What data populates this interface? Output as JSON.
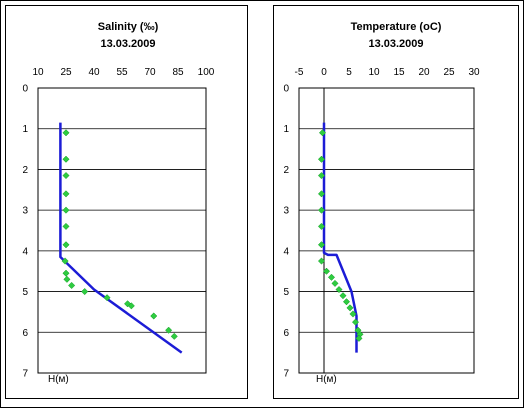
{
  "chart_data": [
    {
      "type": "scatter",
      "title": "Salinity (‰)",
      "subtitle": "13.03.2009",
      "ylabel": "H(м)",
      "xlim": [
        10,
        100
      ],
      "ylim": [
        0,
        7
      ],
      "x_ticks": [
        "10",
        "25",
        "40",
        "55",
        "70",
        "85",
        "100"
      ],
      "y_ticks": [
        "0",
        "1",
        "2",
        "3",
        "4",
        "5",
        "6",
        "7"
      ],
      "y_inverted": true,
      "x_axis_position": "top",
      "grid": "horizontal",
      "line_color": "#1c1cd6",
      "marker_color": "#2ecc40",
      "series": [
        {
          "kind": "line",
          "x": [
            22,
            22,
            22,
            40,
            87
          ],
          "y": [
            0.85,
            4.1,
            4.15,
            4.95,
            6.5
          ]
        },
        {
          "kind": "markers",
          "x": [
            25,
            25,
            25,
            25,
            25,
            25,
            25,
            24.5,
            25,
            25.5,
            28,
            35,
            47,
            58,
            60,
            72,
            80,
            83
          ],
          "y": [
            1.1,
            1.75,
            2.15,
            2.6,
            3.0,
            3.4,
            3.85,
            4.25,
            4.55,
            4.7,
            4.85,
            5.0,
            5.15,
            5.3,
            5.35,
            5.6,
            5.95,
            6.1
          ]
        }
      ]
    },
    {
      "type": "scatter",
      "title": "Temperature  (oC)",
      "subtitle": "13.03.2009",
      "ylabel": "H(м)",
      "xlim": [
        -5,
        30
      ],
      "ylim": [
        0,
        7
      ],
      "x_ticks": [
        "-5",
        "0",
        "5",
        "10",
        "15",
        "20",
        "25",
        "30"
      ],
      "y_ticks": [
        "0",
        "1",
        "2",
        "3",
        "4",
        "5",
        "6",
        "7"
      ],
      "y_inverted": true,
      "x_axis_position": "top",
      "grid": "horizontal",
      "line_color": "#1c1cd6",
      "marker_color": "#2ecc40",
      "series": [
        {
          "kind": "line",
          "x": [
            0,
            0,
            0.8,
            2.5,
            5.5,
            6.5,
            6.5
          ],
          "y": [
            0.85,
            4.05,
            4.1,
            4.1,
            5.0,
            5.6,
            6.5
          ]
        },
        {
          "kind": "markers",
          "x": [
            -0.3,
            -0.5,
            -0.5,
            -0.5,
            -0.5,
            -0.5,
            -0.5,
            -0.5,
            0.5,
            1.5,
            2.2,
            3,
            3.8,
            4.5,
            5.2,
            5.8,
            6.3,
            6.8,
            7.2,
            7.0
          ],
          "y": [
            1.1,
            1.75,
            2.15,
            2.6,
            3.0,
            3.4,
            3.85,
            4.25,
            4.5,
            4.65,
            4.8,
            4.95,
            5.1,
            5.25,
            5.4,
            5.55,
            5.75,
            5.95,
            6.05,
            6.15
          ]
        }
      ]
    }
  ]
}
